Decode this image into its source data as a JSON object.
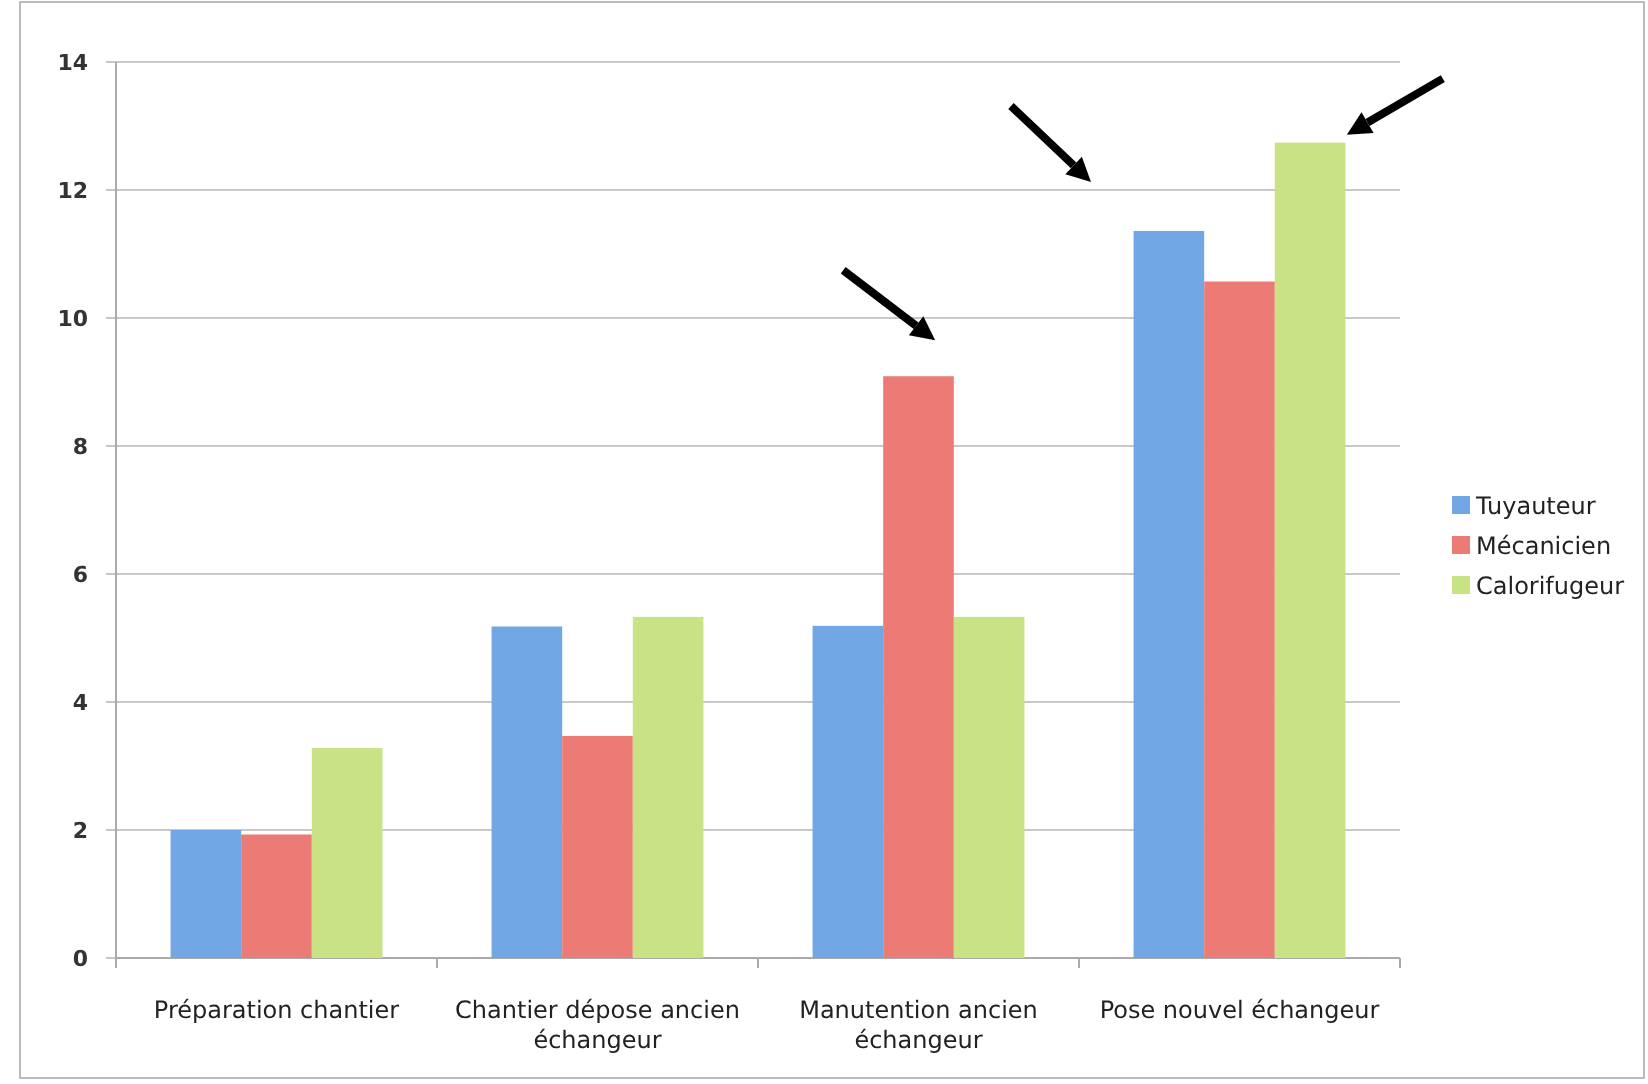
{
  "chart_data": {
    "type": "bar",
    "categories": [
      "Préparation chantier",
      "Chantier dépose ancien échangeur",
      "Manutention ancien échangeur",
      "Pose nouvel échangeur"
    ],
    "series": [
      {
        "name": "Tuyauteur",
        "color": "#72a7e6",
        "values": [
          2.0,
          5.18,
          5.19,
          11.36
        ]
      },
      {
        "name": "Mécanicien",
        "color": "#eb7b74",
        "values": [
          1.93,
          3.47,
          9.09,
          10.57
        ]
      },
      {
        "name": "Calorifugeur",
        "color": "#c9e283",
        "values": [
          3.28,
          5.33,
          5.33,
          12.74
        ]
      }
    ],
    "ylim": [
      0,
      14
    ],
    "yticks": [
      0,
      2,
      4,
      6,
      8,
      10,
      12,
      14
    ],
    "grid": "y",
    "legend": "right"
  }
}
